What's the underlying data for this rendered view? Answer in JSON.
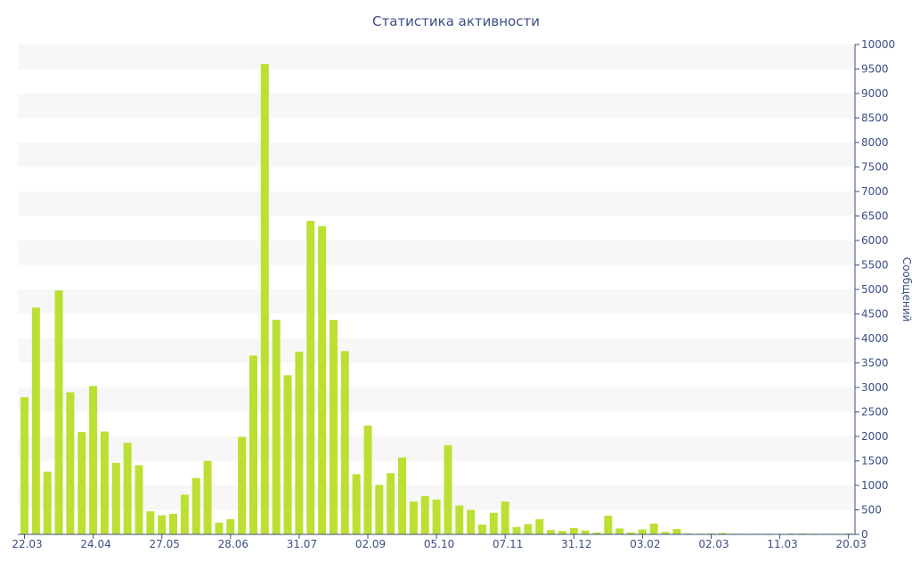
{
  "chart_data": {
    "type": "bar",
    "title": "Статистика активности",
    "ylabel": "Сообщений",
    "xlabel": "",
    "ylim": [
      0,
      10000
    ],
    "y_ticks": [
      0,
      500,
      1000,
      1500,
      2000,
      2500,
      3000,
      3500,
      4000,
      4500,
      5000,
      5500,
      6000,
      6500,
      7000,
      7500,
      8000,
      8500,
      9000,
      9500,
      10000
    ],
    "y_axis_position": "right",
    "x_tick_labels": [
      "22.03",
      "24.04",
      "27.05",
      "28.06",
      "31.07",
      "02.09",
      "05.10",
      "07.11",
      "31.12",
      "03.02",
      "02.03",
      "11.03",
      "20.03"
    ],
    "x_tick_bar_index": [
      0,
      6,
      12,
      18,
      24,
      30,
      36,
      42,
      48,
      54,
      60,
      66,
      72
    ],
    "values": [
      2800,
      4630,
      1280,
      4980,
      2900,
      2090,
      3030,
      2100,
      1460,
      1870,
      1410,
      470,
      390,
      420,
      810,
      1150,
      1500,
      240,
      310,
      1990,
      3650,
      9600,
      4380,
      3250,
      3730,
      6400,
      6290,
      4380,
      3740,
      1230,
      2220,
      1010,
      1250,
      1570,
      670,
      780,
      710,
      1820,
      590,
      500,
      200,
      440,
      670,
      150,
      210,
      310,
      90,
      70,
      130,
      80,
      40,
      380,
      120,
      40,
      100,
      220,
      50,
      110,
      20,
      15,
      20,
      30,
      15,
      10,
      12,
      15,
      12,
      18,
      20,
      15,
      12,
      15,
      20
    ],
    "grid": "alternating horizontal bands",
    "bar_color": "#bbe033",
    "band_color": "#f7f7f7",
    "axis_color": "#3b4e86"
  }
}
